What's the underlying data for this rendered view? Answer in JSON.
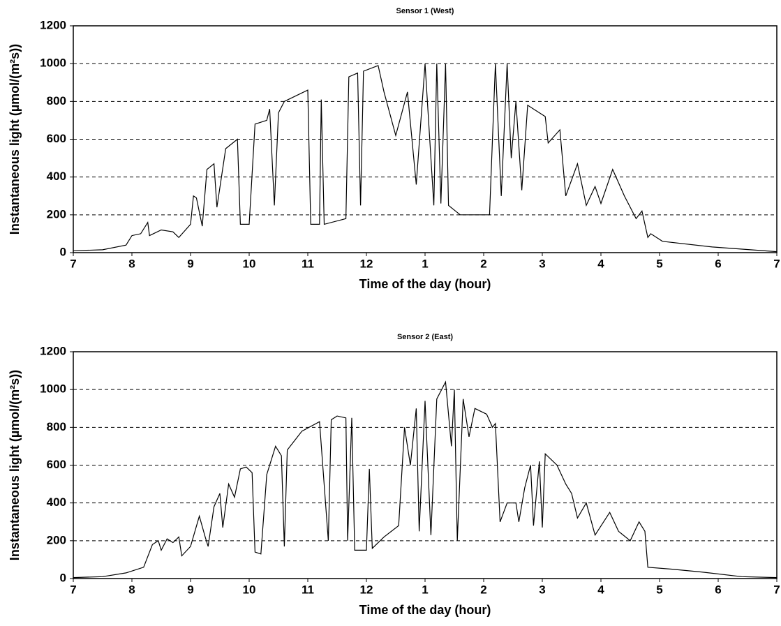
{
  "chart_data": [
    {
      "type": "line",
      "title": "Sensor 1 (West)",
      "xlabel": "Time of the day (hour)",
      "ylabel": "Instantaneous light (µmol/(m²s))",
      "xlim": [
        7,
        19
      ],
      "ylim": [
        0,
        1200
      ],
      "grid": true,
      "xticks": [
        7,
        8,
        9,
        10,
        11,
        12,
        {
          "value": 13,
          "label": "1"
        },
        {
          "value": 14,
          "label": "2"
        },
        {
          "value": 15,
          "label": "3"
        },
        {
          "value": 16,
          "label": "4"
        },
        {
          "value": 17,
          "label": "5"
        },
        {
          "value": 18,
          "label": "6"
        },
        {
          "value": 19,
          "label": "7"
        }
      ],
      "yticks": [
        0,
        200,
        400,
        600,
        800,
        1000,
        1200
      ],
      "series": [
        {
          "color": "#000000",
          "x": [
            7.0,
            7.5,
            7.9,
            8.0,
            8.15,
            8.27,
            8.3,
            8.5,
            8.7,
            8.8,
            9.0,
            9.05,
            9.1,
            9.2,
            9.28,
            9.4,
            9.45,
            9.6,
            9.8,
            9.85,
            10.0,
            10.1,
            10.3,
            10.35,
            10.43,
            10.5,
            10.6,
            10.8,
            11.0,
            11.05,
            11.2,
            11.23,
            11.28,
            11.65,
            11.7,
            11.85,
            11.9,
            11.95,
            12.2,
            12.3,
            12.5,
            12.7,
            12.85,
            13.0,
            13.15,
            13.2,
            13.27,
            13.35,
            13.4,
            13.6,
            14.1,
            14.2,
            14.3,
            14.4,
            14.47,
            14.55,
            14.65,
            14.75,
            15.05,
            15.1,
            15.3,
            15.4,
            15.6,
            15.75,
            15.9,
            16.0,
            16.2,
            16.4,
            16.6,
            16.7,
            16.8,
            16.85,
            17.05,
            17.9,
            19.0
          ],
          "values": [
            10,
            15,
            40,
            90,
            100,
            160,
            90,
            120,
            110,
            80,
            150,
            300,
            290,
            140,
            440,
            470,
            240,
            550,
            600,
            150,
            150,
            680,
            700,
            760,
            250,
            740,
            800,
            830,
            860,
            150,
            150,
            810,
            150,
            180,
            930,
            950,
            250,
            960,
            990,
            850,
            620,
            850,
            360,
            1000,
            250,
            1000,
            260,
            1000,
            250,
            200,
            200,
            1000,
            300,
            1000,
            500,
            800,
            330,
            780,
            720,
            580,
            650,
            300,
            470,
            250,
            350,
            260,
            440,
            300,
            180,
            220,
            80,
            100,
            60,
            30,
            5
          ]
        }
      ]
    },
    {
      "type": "line",
      "title": "Sensor 2 (East)",
      "xlabel": "Time of the day (hour)",
      "ylabel": "Instantaneous light (µmol/(m²s))",
      "xlim": [
        7,
        19
      ],
      "ylim": [
        0,
        1200
      ],
      "grid": true,
      "xticks": [
        7,
        8,
        9,
        10,
        11,
        12,
        {
          "value": 13,
          "label": "1"
        },
        {
          "value": 14,
          "label": "2"
        },
        {
          "value": 15,
          "label": "3"
        },
        {
          "value": 16,
          "label": "4"
        },
        {
          "value": 17,
          "label": "5"
        },
        {
          "value": 18,
          "label": "6"
        },
        {
          "value": 19,
          "label": "7"
        }
      ],
      "yticks": [
        0,
        200,
        400,
        600,
        800,
        1000,
        1200
      ],
      "series": [
        {
          "color": "#000000",
          "x": [
            7.0,
            7.5,
            7.9,
            8.2,
            8.35,
            8.45,
            8.5,
            8.6,
            8.7,
            8.8,
            8.85,
            9.0,
            9.15,
            9.25,
            9.3,
            9.4,
            9.5,
            9.55,
            9.65,
            9.75,
            9.85,
            9.95,
            10.05,
            10.1,
            10.2,
            10.3,
            10.45,
            10.55,
            10.6,
            10.65,
            10.9,
            11.2,
            11.35,
            11.4,
            11.5,
            11.65,
            11.68,
            11.75,
            11.8,
            12.0,
            12.05,
            12.1,
            12.3,
            12.55,
            12.65,
            12.75,
            12.85,
            12.9,
            13.0,
            13.1,
            13.2,
            13.35,
            13.45,
            13.5,
            13.55,
            13.65,
            13.75,
            13.85,
            14.05,
            14.15,
            14.2,
            14.28,
            14.4,
            14.55,
            14.6,
            14.7,
            14.8,
            14.85,
            14.95,
            15.0,
            15.05,
            15.25,
            15.4,
            15.5,
            15.6,
            15.75,
            15.9,
            16.15,
            16.3,
            16.5,
            16.65,
            16.75,
            16.8,
            17.2,
            17.7,
            18.4,
            19.0
          ],
          "values": [
            5,
            10,
            30,
            60,
            180,
            200,
            150,
            210,
            190,
            220,
            120,
            170,
            330,
            220,
            170,
            380,
            450,
            270,
            500,
            430,
            580,
            590,
            560,
            140,
            130,
            550,
            700,
            650,
            170,
            680,
            780,
            830,
            200,
            840,
            860,
            850,
            200,
            850,
            150,
            150,
            580,
            160,
            220,
            280,
            800,
            600,
            900,
            250,
            940,
            230,
            950,
            1040,
            700,
            1000,
            200,
            950,
            750,
            900,
            870,
            800,
            820,
            300,
            400,
            400,
            300,
            480,
            600,
            280,
            620,
            270,
            660,
            600,
            500,
            450,
            320,
            400,
            230,
            350,
            250,
            200,
            300,
            250,
            60,
            50,
            35,
            10,
            5
          ]
        }
      ]
    }
  ]
}
